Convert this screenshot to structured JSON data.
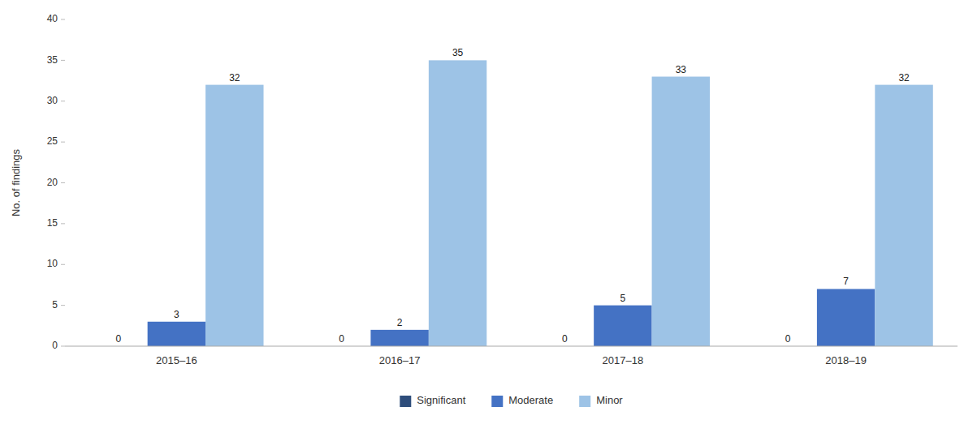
{
  "chart_data": {
    "type": "bar",
    "categories": [
      "2015–16",
      "2016–17",
      "2017–18",
      "2018–19"
    ],
    "series": [
      {
        "name": "Significant",
        "color": "#2e4d7b",
        "values": [
          0,
          0,
          0,
          0
        ]
      },
      {
        "name": "Moderate",
        "color": "#4472c4",
        "values": [
          3,
          2,
          5,
          7
        ]
      },
      {
        "name": "Minor",
        "color": "#9dc3e6",
        "values": [
          32,
          35,
          33,
          32
        ]
      }
    ],
    "ylabel": "No. of findings",
    "ylim": [
      0,
      40
    ],
    "yticks": [
      0,
      5,
      10,
      15,
      20,
      25,
      30,
      35,
      40
    ],
    "data_labels": true,
    "grid": false,
    "legend": "bottom"
  }
}
